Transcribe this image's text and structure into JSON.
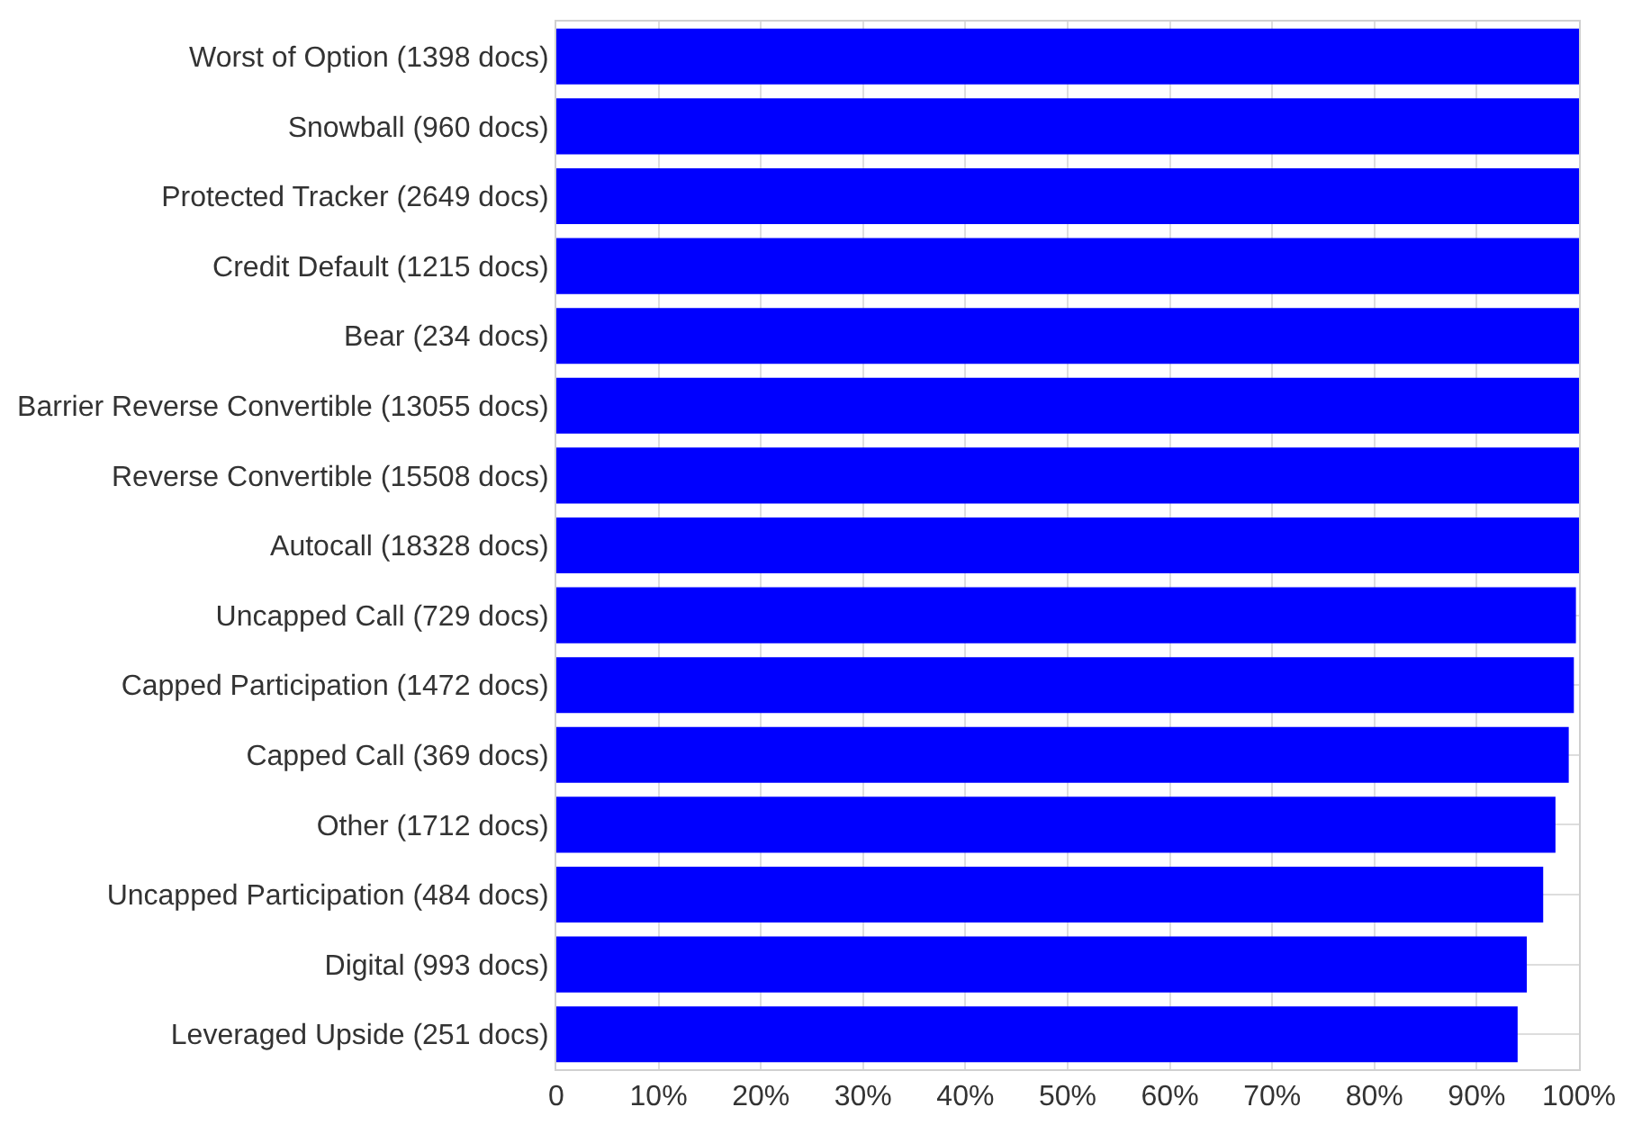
{
  "chart_data": {
    "type": "bar",
    "orientation": "horizontal",
    "categories": [
      "Worst of Option (1398 docs)",
      "Snowball (960 docs)",
      "Protected Tracker (2649 docs)",
      "Credit Default (1215 docs)",
      "Bear (234 docs)",
      "Barrier Reverse Convertible (13055 docs)",
      "Reverse Convertible (15508 docs)",
      "Autocall (18328 docs)",
      "Uncapped Call (729 docs)",
      "Capped Participation (1472 docs)",
      "Capped Call (369 docs)",
      "Other (1712 docs)",
      "Uncapped Participation (484 docs)",
      "Digital (993 docs)",
      "Leveraged Upside (251 docs)"
    ],
    "values": [
      100,
      100,
      100,
      100,
      100,
      100,
      100,
      100,
      99.7,
      99.5,
      99.0,
      97.7,
      96.5,
      94.9,
      94.0
    ],
    "color": "#0000ff",
    "xlim": [
      0,
      100
    ],
    "xticks": [
      0,
      {
        "value": 10,
        "label": "10%"
      },
      {
        "value": 20,
        "label": "20%"
      },
      {
        "value": 30,
        "label": "30%"
      },
      {
        "value": 40,
        "label": "40%"
      },
      {
        "value": 50,
        "label": "50%"
      },
      {
        "value": 60,
        "label": "60%"
      },
      {
        "value": 70,
        "label": "70%"
      },
      {
        "value": 80,
        "label": "80%"
      },
      {
        "value": 90,
        "label": "90%"
      },
      {
        "value": 100,
        "label": "100%"
      }
    ],
    "grid": true
  }
}
